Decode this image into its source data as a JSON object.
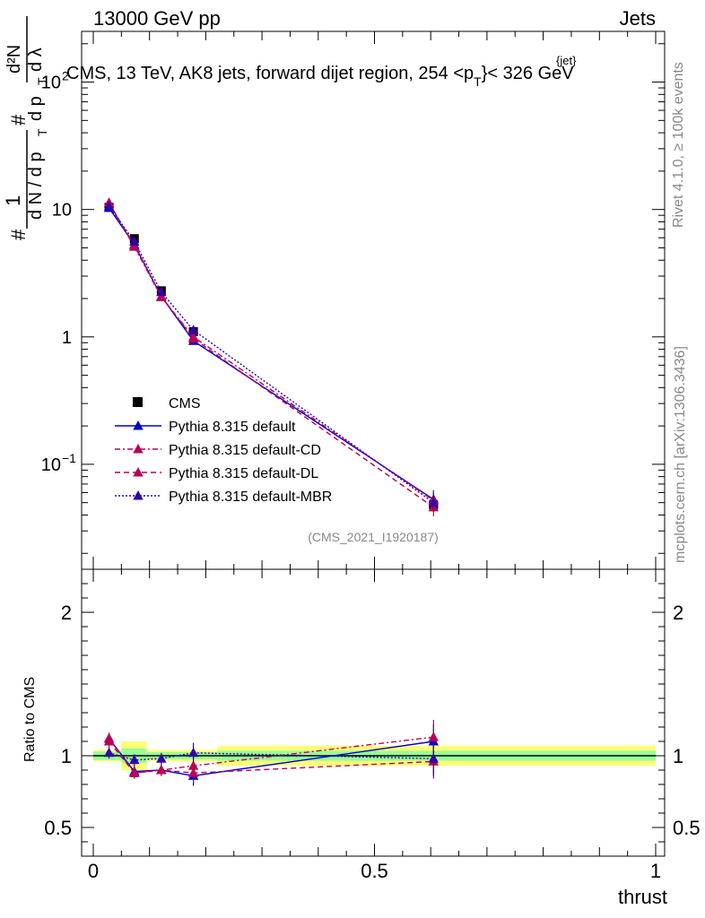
{
  "header": {
    "left": "13000 GeV pp",
    "right": "Jets"
  },
  "plot_title": "CMS, 13 TeV, AK8 jets, forward dijet region, 254 <p",
  "plot_title_sub": "T",
  "plot_title_sup": "{jet}",
  "plot_title_end": "}< 326 GeV",
  "ylabel_top": "# 1/(dN/dp_T) # d²N/dp_T dλ",
  "side_rivet": "Rivet 4.1.0, ≥ 100k events",
  "side_mcplots": "mcplots.cern.ch [arXiv:1306.3436]",
  "analysis_id": "(CMS_2021_I1920187)",
  "ratio_ylabel": "Ratio to CMS",
  "colors": {
    "default": "#0000cc",
    "cd": "#bb0055",
    "dl": "#bb0055",
    "mbr": "#3300aa",
    "band_inner": "#99ff99",
    "band_outer": "#ffff77"
  },
  "chart_data": [
    {
      "type": "line",
      "scale": "log",
      "xlabel": "thrust",
      "xlim": [
        0,
        1
      ],
      "ylim": [
        0.015,
        250
      ],
      "yticks": [
        {
          "value": 100,
          "label": "10",
          "exp": "2"
        },
        {
          "value": 10,
          "label": "10",
          "exp": ""
        },
        {
          "value": 1,
          "label": "1",
          "exp": ""
        },
        {
          "value": 0.1,
          "label": "10",
          "exp": "−1"
        }
      ],
      "x": [
        0.028,
        0.073,
        0.121,
        0.178,
        0.605
      ],
      "series": [
        {
          "name": "CMS",
          "key": "cms",
          "marker": "square",
          "values": [
            10.4,
            5.9,
            2.3,
            1.1,
            0.048
          ]
        },
        {
          "name": "Pythia 8.315 default",
          "key": "default",
          "marker": "triangle",
          "dash": "",
          "values": [
            10.3,
            5.3,
            2.08,
            0.93,
            0.053
          ]
        },
        {
          "name": "Pythia 8.315 default-CD",
          "key": "cd",
          "marker": "triangle",
          "dash": "6,3,2,3",
          "values": [
            11.2,
            5.1,
            2.05,
            1.0,
            0.052
          ]
        },
        {
          "name": "Pythia 8.315 default-DL",
          "key": "dl",
          "marker": "triangle",
          "dash": "6,4",
          "values": [
            11.3,
            5.2,
            2.08,
            0.97,
            0.046
          ]
        },
        {
          "name": "Pythia 8.315 default-MBR",
          "key": "mbr",
          "marker": "triangle",
          "dash": "2,2",
          "values": [
            10.6,
            5.6,
            2.25,
            1.13,
            0.05
          ]
        }
      ]
    },
    {
      "type": "line",
      "title": "Ratio to CMS",
      "xlabel": "thrust",
      "xlim": [
        0,
        1
      ],
      "ylim": [
        0.3,
        2.3
      ],
      "xticks": [
        "0",
        "0.5",
        "1"
      ],
      "yticks": [
        "0.5",
        "1",
        "2"
      ],
      "x": [
        0.028,
        0.073,
        0.121,
        0.178,
        0.605
      ],
      "series": [
        {
          "name": "Pythia 8.315 default",
          "key": "default",
          "values": [
            1.12,
            0.89,
            0.9,
            0.86,
            1.1
          ]
        },
        {
          "name": "Pythia 8.315 default-CD",
          "key": "cd",
          "values": [
            1.12,
            0.88,
            0.9,
            0.93,
            1.13
          ]
        },
        {
          "name": "Pythia 8.315 default-DL",
          "key": "dl",
          "values": [
            1.1,
            0.88,
            0.9,
            0.88,
            0.96
          ]
        },
        {
          "name": "Pythia 8.315 default-MBR",
          "key": "mbr",
          "values": [
            1.02,
            0.97,
            0.98,
            1.02,
            0.98
          ]
        }
      ]
    }
  ]
}
